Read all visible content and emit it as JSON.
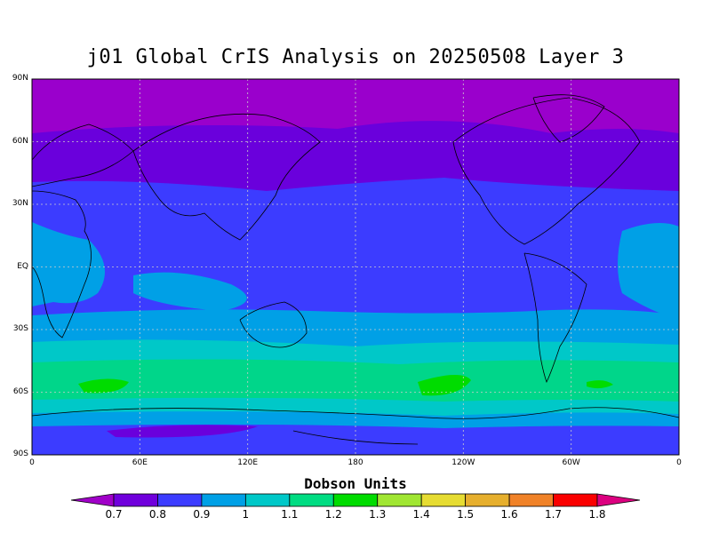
{
  "title": "j01 Global CrIS Analysis on 20250508 Layer 3",
  "map": {
    "lat_labels": [
      "90N",
      "60N",
      "30N",
      "EQ",
      "30S",
      "60S",
      "90S"
    ],
    "lon_labels": [
      "0",
      "60E",
      "120E",
      "180",
      "120W",
      "60W",
      "0"
    ]
  },
  "colorbar": {
    "title": "Dobson Units",
    "labels": [
      "0.7",
      "0.8",
      "0.9",
      "1",
      "1.1",
      "1.2",
      "1.3",
      "1.4",
      "1.5",
      "1.6",
      "1.7",
      "1.8"
    ],
    "colors": [
      "#a000c8",
      "#7000dc",
      "#3c3cff",
      "#00a0e6",
      "#00c8c8",
      "#00dc82",
      "#00dc00",
      "#a0e632",
      "#e6dc32",
      "#e6af2d",
      "#f08228",
      "#fa0000",
      "#dc0080"
    ]
  }
}
